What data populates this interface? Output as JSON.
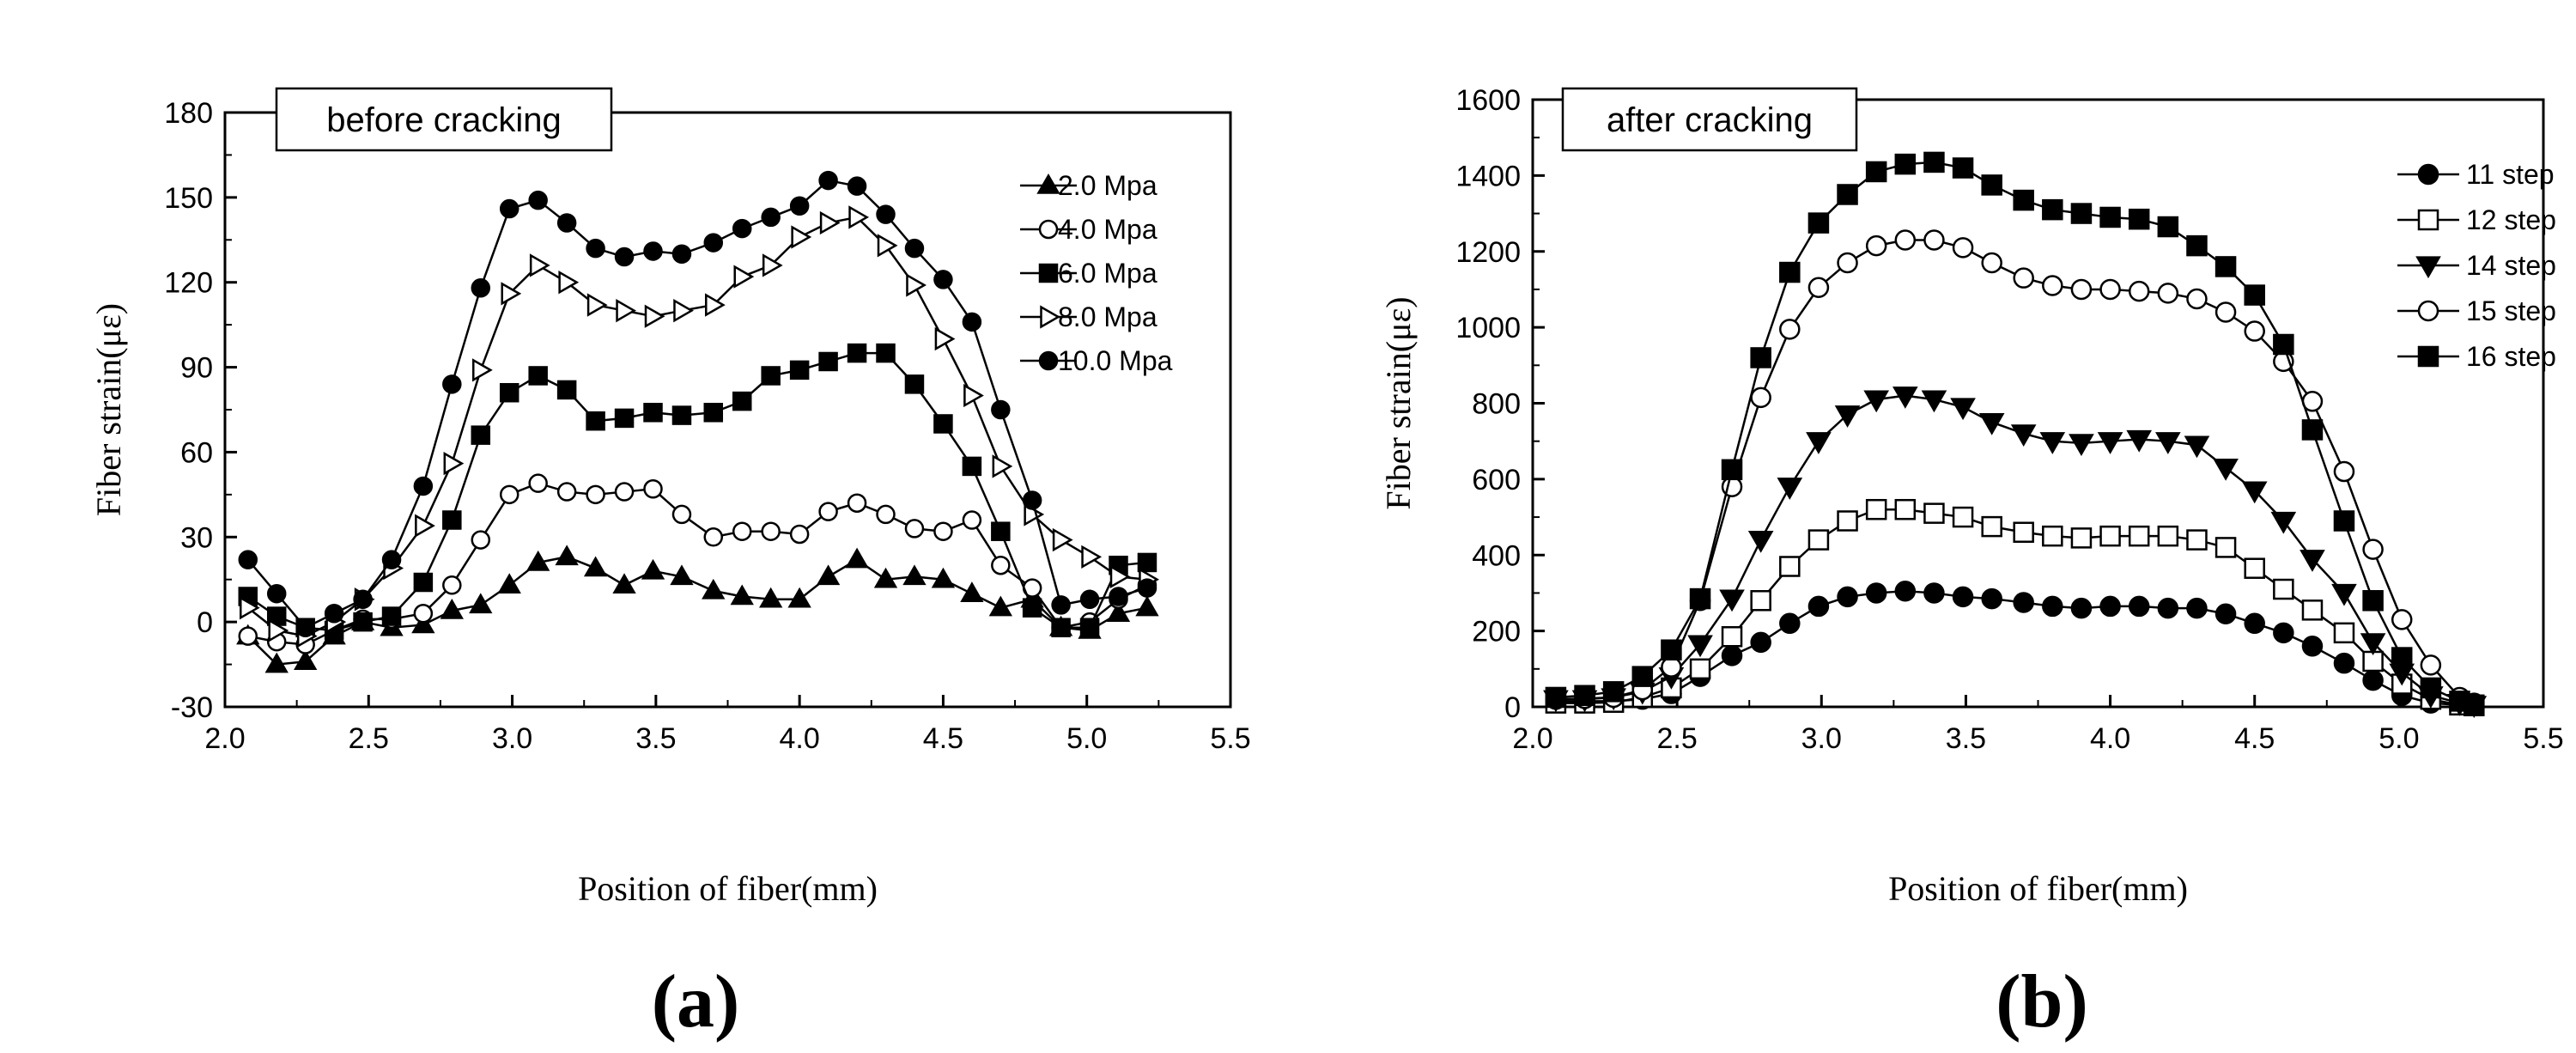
{
  "chart_data": [
    {
      "type": "line",
      "panel_label": "(a)",
      "box_label": "before cracking",
      "xlabel": "Position of fiber(mm)",
      "ylabel": "Fiber strain(με)",
      "xlim": [
        2.0,
        5.5
      ],
      "ylim": [
        -30,
        180
      ],
      "xticks": [
        "2.0",
        "2.5",
        "3.0",
        "3.5",
        "4.0",
        "4.5",
        "5.0",
        "5.5"
      ],
      "yticks": [
        "-30",
        "0",
        "30",
        "60",
        "90",
        "120",
        "150",
        "180"
      ],
      "legend_position": "top-right",
      "x": [
        2.08,
        2.18,
        2.28,
        2.38,
        2.48,
        2.58,
        2.69,
        2.79,
        2.89,
        2.99,
        3.09,
        3.19,
        3.29,
        3.39,
        3.49,
        3.59,
        3.7,
        3.8,
        3.9,
        4.0,
        4.1,
        4.2,
        4.3,
        4.4,
        4.5,
        4.6,
        4.7,
        4.81,
        4.91,
        5.01,
        5.11,
        5.21
      ],
      "series": [
        {
          "name": "2.0 Mpa",
          "marker": "triangle-up",
          "fill": "filled",
          "values": [
            -5,
            -15,
            -14,
            -5,
            0,
            -2,
            -1,
            4,
            6,
            13,
            21,
            23,
            19,
            13,
            18,
            16,
            11,
            9,
            8,
            8,
            16,
            22,
            15,
            16,
            15,
            10,
            5,
            8,
            -2,
            -3,
            3,
            5
          ]
        },
        {
          "name": "4.0 Mpa",
          "marker": "circle",
          "fill": "open",
          "values": [
            -5,
            -7,
            -8,
            -3,
            1,
            1,
            3,
            13,
            29,
            45,
            49,
            46,
            45,
            46,
            47,
            38,
            30,
            32,
            32,
            31,
            39,
            42,
            38,
            33,
            32,
            36,
            20,
            12,
            -2,
            0,
            8,
            13
          ]
        },
        {
          "name": "6.0 Mpa",
          "marker": "square",
          "fill": "filled",
          "values": [
            9,
            2,
            -2,
            -3,
            0,
            2,
            14,
            36,
            66,
            81,
            87,
            82,
            71,
            72,
            74,
            73,
            74,
            78,
            87,
            89,
            92,
            95,
            95,
            84,
            70,
            55,
            32,
            5,
            -2,
            -2,
            20,
            21
          ]
        },
        {
          "name": "8.0 Mpa",
          "marker": "triangle-right",
          "fill": "open",
          "values": [
            5,
            -3,
            -5,
            0,
            8,
            19,
            34,
            56,
            89,
            116,
            126,
            120,
            112,
            110,
            108,
            110,
            112,
            122,
            126,
            136,
            141,
            143,
            133,
            119,
            100,
            80,
            55,
            38,
            29,
            23,
            16,
            15
          ]
        },
        {
          "name": "10.0 Mpa",
          "marker": "circle",
          "fill": "filled",
          "values": [
            22,
            10,
            -2,
            3,
            8,
            22,
            48,
            84,
            118,
            146,
            149,
            141,
            132,
            129,
            131,
            130,
            134,
            139,
            143,
            147,
            156,
            154,
            144,
            132,
            121,
            106,
            75,
            43,
            6,
            8,
            9,
            12
          ]
        }
      ]
    },
    {
      "type": "line",
      "panel_label": "(b)",
      "box_label": "after cracking",
      "xlabel": "Position of fiber(mm)",
      "ylabel": "Fiber strain(με)",
      "xlim": [
        2.0,
        5.5
      ],
      "ylim": [
        0,
        1600
      ],
      "xticks": [
        "2.0",
        "2.5",
        "3.0",
        "3.5",
        "4.0",
        "4.5",
        "5.0",
        "5.5"
      ],
      "yticks": [
        "0",
        "200",
        "400",
        "600",
        "800",
        "1000",
        "1200",
        "1400",
        "1600"
      ],
      "legend_position": "top-right",
      "x": [
        2.08,
        2.18,
        2.28,
        2.38,
        2.48,
        2.58,
        2.69,
        2.79,
        2.89,
        2.99,
        3.09,
        3.19,
        3.29,
        3.39,
        3.49,
        3.59,
        3.7,
        3.8,
        3.9,
        4.0,
        4.1,
        4.2,
        4.3,
        4.4,
        4.5,
        4.6,
        4.7,
        4.81,
        4.91,
        5.01,
        5.11,
        5.21,
        5.26
      ],
      "series": [
        {
          "name": "11 step",
          "marker": "circle",
          "fill": "filled",
          "values": [
            15,
            15,
            15,
            20,
            35,
            80,
            135,
            170,
            220,
            265,
            290,
            300,
            305,
            300,
            290,
            285,
            275,
            265,
            260,
            265,
            265,
            260,
            260,
            245,
            220,
            195,
            160,
            115,
            70,
            30,
            10,
            5,
            10
          ]
        },
        {
          "name": "12 step",
          "marker": "square",
          "fill": "open",
          "values": [
            10,
            10,
            12,
            25,
            50,
            100,
            185,
            280,
            370,
            440,
            490,
            520,
            520,
            510,
            500,
            475,
            460,
            450,
            445,
            450,
            450,
            450,
            440,
            420,
            365,
            310,
            255,
            195,
            120,
            60,
            20,
            5,
            3
          ]
        },
        {
          "name": "14 step",
          "marker": "triangle-down",
          "fill": "filled",
          "values": [
            20,
            20,
            25,
            40,
            80,
            165,
            285,
            440,
            580,
            700,
            770,
            810,
            820,
            810,
            790,
            750,
            720,
            700,
            695,
            700,
            705,
            700,
            690,
            630,
            570,
            490,
            390,
            300,
            170,
            90,
            30,
            10,
            5
          ]
        },
        {
          "name": "15 step",
          "marker": "circle",
          "fill": "open",
          "values": [
            20,
            22,
            25,
            45,
            105,
            280,
            580,
            815,
            995,
            1105,
            1170,
            1215,
            1230,
            1230,
            1210,
            1170,
            1130,
            1110,
            1100,
            1100,
            1095,
            1090,
            1075,
            1040,
            990,
            910,
            805,
            620,
            415,
            230,
            110,
            25,
            5
          ]
        },
        {
          "name": "16 step",
          "marker": "square",
          "fill": "filled",
          "values": [
            25,
            30,
            40,
            80,
            150,
            285,
            625,
            920,
            1145,
            1275,
            1350,
            1410,
            1430,
            1435,
            1420,
            1375,
            1335,
            1310,
            1300,
            1290,
            1285,
            1265,
            1215,
            1160,
            1085,
            955,
            730,
            490,
            280,
            130,
            50,
            15,
            5
          ]
        }
      ]
    }
  ]
}
